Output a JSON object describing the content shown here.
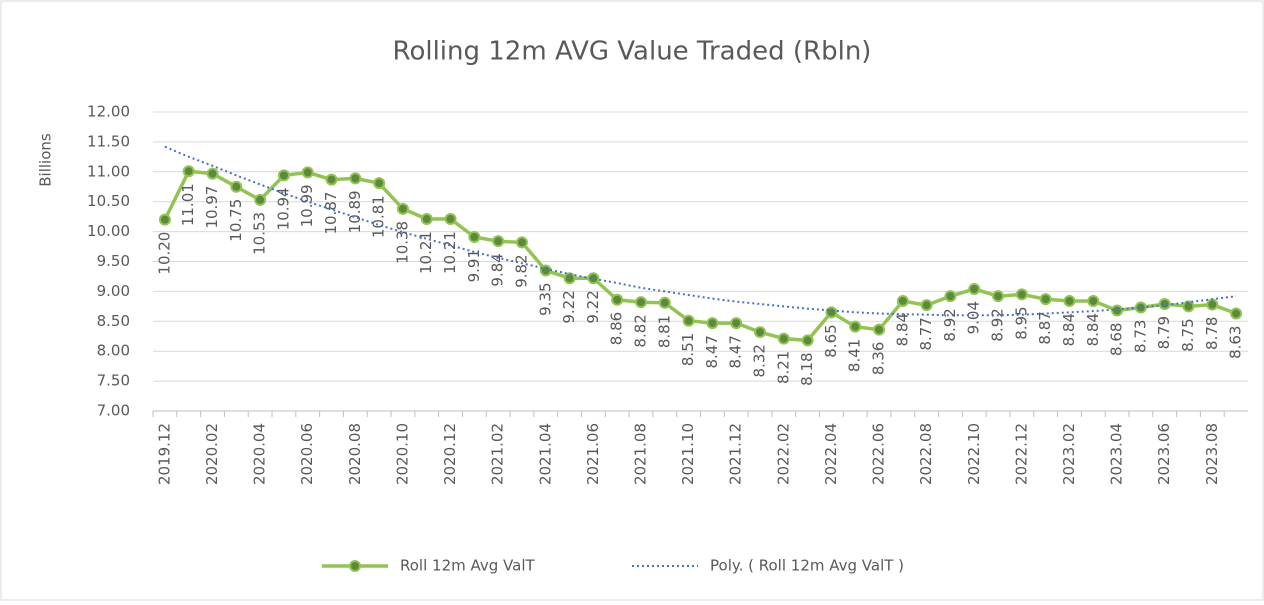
{
  "chart_data": {
    "type": "line",
    "title": "Rolling 12m AVG Value Traded (Rbln)",
    "y_axis_label": "Billions",
    "categories": [
      "2019.12",
      null,
      "2020.02",
      null,
      "2020.04",
      null,
      "2020.06",
      null,
      "2020.08",
      null,
      "2020.10",
      null,
      "2020.12",
      null,
      "2021.02",
      null,
      "2021.04",
      null,
      "2021.06",
      null,
      "2021.08",
      null,
      "2021.10",
      null,
      "2021.12",
      null,
      "2022.02",
      null,
      "2022.04",
      null,
      "2022.06",
      null,
      "2022.08",
      null,
      "2022.10",
      null,
      "2022.12",
      null,
      "2023.02",
      null,
      "2023.04",
      null,
      "2023.06",
      null,
      "2023.08",
      null
    ],
    "series": [
      {
        "name": "Roll 12m Avg ValT",
        "color": "#92c353",
        "marker_color": "#5a8a3a",
        "values": [
          10.2,
          11.01,
          10.97,
          10.75,
          10.53,
          10.94,
          10.99,
          10.87,
          10.89,
          10.81,
          10.38,
          10.21,
          10.21,
          9.91,
          9.84,
          9.82,
          9.35,
          9.22,
          9.22,
          8.86,
          8.82,
          8.81,
          8.51,
          8.47,
          8.47,
          8.32,
          8.21,
          8.18,
          8.65,
          8.41,
          8.36,
          8.84,
          8.77,
          8.92,
          9.04,
          8.92,
          8.95,
          8.87,
          8.84,
          8.84,
          8.68,
          8.73,
          8.79,
          8.75,
          8.78,
          8.63
        ],
        "value_labels": [
          "10.20",
          "11.01",
          "10.97",
          "10.75",
          "10.53",
          "10.94",
          "10.99",
          "10.87",
          "10.89",
          "10.81",
          "10.38",
          "10.21",
          "10.21",
          "9.91",
          "9.84",
          "9.82",
          "9.35",
          "9.22",
          "9.22",
          "8.86",
          "8.82",
          "8.81",
          "8.51",
          "8.47",
          "8.47",
          "8.32",
          "8.21",
          "8.18",
          "8.65",
          "8.41",
          "8.36",
          "8.84",
          "8.77",
          "8.92",
          "9.04",
          "8.92",
          "8.95",
          "8.87",
          "8.84",
          "8.84",
          "8.68",
          "8.73",
          "8.79",
          "8.75",
          "8.78",
          "8.63"
        ]
      },
      {
        "name": "Poly. ( Roll 12m Avg ValT )",
        "color": "#4472c4",
        "dashed": true,
        "values": [
          11.42,
          11.25,
          11.1,
          10.94,
          10.79,
          10.64,
          10.5,
          10.37,
          10.24,
          10.11,
          9.99,
          9.88,
          9.77,
          9.66,
          9.56,
          9.47,
          9.38,
          9.29,
          9.21,
          9.14,
          9.06,
          9.0,
          8.94,
          8.88,
          8.83,
          8.79,
          8.75,
          8.71,
          8.68,
          8.65,
          8.63,
          8.62,
          8.61,
          8.6,
          8.6,
          8.6,
          8.61,
          8.63,
          8.65,
          8.67,
          8.7,
          8.73,
          8.77,
          8.82,
          8.87,
          8.92
        ]
      }
    ],
    "ylim": [
      7,
      12
    ],
    "yticks": [
      {
        "value": 7,
        "label": "7.00"
      },
      {
        "value": 7.5,
        "label": "7.50"
      },
      {
        "value": 8,
        "label": "8.00"
      },
      {
        "value": 8.5,
        "label": "8.50"
      },
      {
        "value": 9,
        "label": "9.00"
      },
      {
        "value": 9.5,
        "label": "9.50"
      },
      {
        "value": 10,
        "label": "10.00"
      },
      {
        "value": 10.5,
        "label": "10.50"
      },
      {
        "value": 11,
        "label": "11.00"
      },
      {
        "value": 11.5,
        "label": "11.50"
      },
      {
        "value": 12,
        "label": "12.00"
      }
    ],
    "grid": true,
    "legend": "bottom"
  }
}
